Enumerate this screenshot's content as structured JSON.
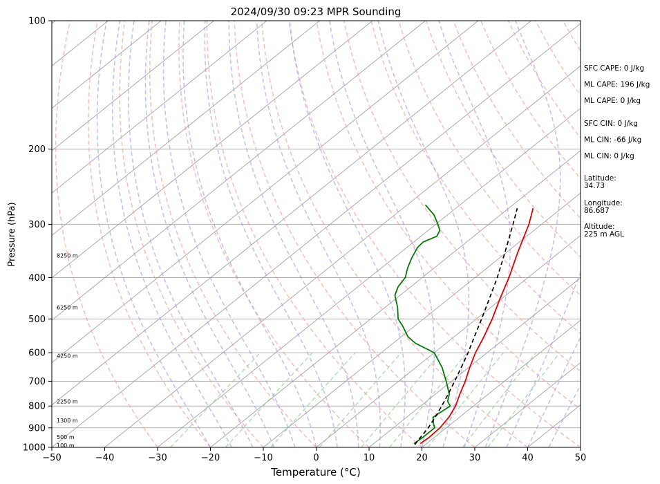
{
  "chart_data": {
    "type": "line",
    "title": "2024/09/30 09:23 MPR Sounding",
    "xlabel": "Temperature (°C)",
    "ylabel": "Pressure (hPa)",
    "xlim": [
      -50,
      50
    ],
    "ylim": [
      1000,
      100
    ],
    "y_scale": "log",
    "x_ticks": [
      -50,
      -40,
      -30,
      -20,
      -10,
      0,
      10,
      20,
      30,
      40,
      50
    ],
    "y_ticks": [
      1000,
      900,
      800,
      700,
      600,
      500,
      400,
      300,
      200,
      100
    ],
    "skew": "skew-T log-p",
    "grid": true,
    "series": [
      {
        "color": "#e00000",
        "points": [
          [
            980,
            18.8
          ],
          [
            950,
            19.0
          ],
          [
            900,
            18.8
          ],
          [
            850,
            18.0
          ],
          [
            800,
            16.6
          ],
          [
            750,
            14.6
          ],
          [
            700,
            12.6
          ],
          [
            650,
            10.2
          ],
          [
            600,
            7.8
          ],
          [
            550,
            5.6
          ],
          [
            500,
            3.0
          ],
          [
            450,
            -0.2
          ],
          [
            400,
            -3.6
          ],
          [
            350,
            -7.8
          ],
          [
            300,
            -12.4
          ],
          [
            275,
            -15.4
          ]
        ]
      },
      {
        "color": "#007a00",
        "points": [
          [
            980,
            17.6
          ],
          [
            950,
            17.8
          ],
          [
            900,
            17.8
          ],
          [
            880,
            16.6
          ],
          [
            850,
            15.0
          ],
          [
            830,
            15.2
          ],
          [
            800,
            15.6
          ],
          [
            780,
            14.0
          ],
          [
            750,
            12.6
          ],
          [
            700,
            9.0
          ],
          [
            650,
            5.0
          ],
          [
            600,
            0.0
          ],
          [
            570,
            -5.8
          ],
          [
            550,
            -8.8
          ],
          [
            520,
            -12.2
          ],
          [
            500,
            -14.8
          ],
          [
            470,
            -17.6
          ],
          [
            440,
            -21.0
          ],
          [
            420,
            -22.4
          ],
          [
            400,
            -23.2
          ],
          [
            380,
            -25.0
          ],
          [
            360,
            -26.6
          ],
          [
            340,
            -28.0
          ],
          [
            330,
            -28.2
          ],
          [
            320,
            -27.0
          ],
          [
            310,
            -27.8
          ],
          [
            300,
            -29.6
          ],
          [
            285,
            -32.6
          ],
          [
            270,
            -36.6
          ]
        ]
      },
      {
        "color": "#000000",
        "dashed": true,
        "points": [
          [
            985,
            18.0
          ],
          [
            950,
            17.4
          ],
          [
            900,
            16.6
          ],
          [
            850,
            15.4
          ],
          [
            800,
            14.0
          ],
          [
            750,
            12.4
          ],
          [
            700,
            10.6
          ],
          [
            650,
            8.6
          ],
          [
            600,
            6.4
          ],
          [
            550,
            3.8
          ],
          [
            500,
            1.0
          ],
          [
            450,
            -2.2
          ],
          [
            400,
            -5.8
          ],
          [
            350,
            -10.2
          ],
          [
            300,
            -15.4
          ],
          [
            275,
            -18.4
          ]
        ]
      }
    ],
    "height_labels": [
      {
        "label": "100 m",
        "pressure": 989
      },
      {
        "label": "500 m",
        "pressure": 945
      },
      {
        "label": "1300 m",
        "pressure": 865
      },
      {
        "label": "2250 m",
        "pressure": 780
      },
      {
        "label": "4250 m",
        "pressure": 610
      },
      {
        "label": "6250 m",
        "pressure": 470
      },
      {
        "label": "8250 m",
        "pressure": 355
      }
    ],
    "annotations": [
      {
        "group": 0,
        "text": "SFC CAPE: 0 J/kg"
      },
      {
        "group": 0,
        "text": "ML CAPE: 196 J/kg"
      },
      {
        "group": 0,
        "text": "ML CAPE: 0 J/kg"
      },
      {
        "group": 1,
        "text": "SFC CIN: 0 J/kg"
      },
      {
        "group": 1,
        "text": "ML CIN: -66 J/kg"
      },
      {
        "group": 1,
        "text": "ML CIN: 0 J/kg"
      },
      {
        "group": 2,
        "text": "Latitude:"
      },
      {
        "group": 2,
        "text": "34.73"
      },
      {
        "group": 3,
        "text": "Longitude:"
      },
      {
        "group": 3,
        "text": "86.687"
      },
      {
        "group": 4,
        "text": "Altitude:"
      },
      {
        "group": 4,
        "text": "225 m AGL"
      }
    ]
  }
}
